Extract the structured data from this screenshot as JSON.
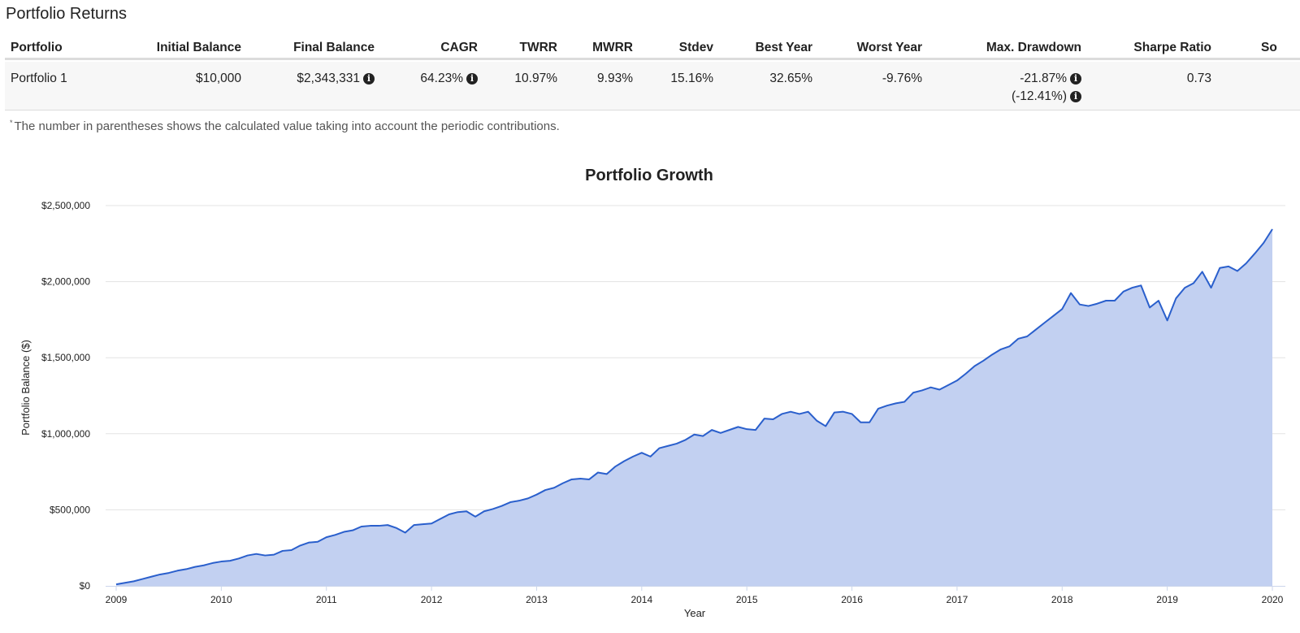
{
  "section_title": "Portfolio Returns",
  "table": {
    "headers": [
      "Portfolio",
      "Initial Balance",
      "Final Balance",
      "CAGR",
      "TWRR",
      "MWRR",
      "Stdev",
      "Best Year",
      "Worst Year",
      "Max. Drawdown",
      "Sharpe Ratio",
      "So"
    ],
    "row": {
      "portfolio": "Portfolio 1",
      "initial_balance": "$10,000",
      "final_balance": "$2,343,331",
      "cagr": "64.23%",
      "twrr": "10.97%",
      "mwrr": "9.93%",
      "stdev": "15.16%",
      "best_year": "32.65%",
      "worst_year": "-9.76%",
      "max_drawdown": "-21.87%",
      "max_drawdown_contrib": "(-12.41%)",
      "sharpe_ratio": "0.73"
    }
  },
  "footnote": {
    "marker": "*",
    "text": "The number in parentheses shows the calculated value taking into account the periodic contributions."
  },
  "chart_data": {
    "type": "area",
    "title": "Portfolio Growth",
    "xlabel": "Year",
    "ylabel": "Portfolio Balance ($)",
    "ylim": [
      0,
      2500000
    ],
    "xlim": [
      2009,
      2020
    ],
    "y_ticks": [
      "$0",
      "$500,000",
      "$1,000,000",
      "$1,500,000",
      "$2,000,000",
      "$2,500,000"
    ],
    "x_ticks": [
      "2009",
      "2010",
      "2011",
      "2012",
      "2013",
      "2014",
      "2015",
      "2016",
      "2017",
      "2018",
      "2019",
      "2020"
    ],
    "grid": true,
    "legend": "none",
    "colors": {
      "line": "#2a5fcc",
      "fill": "#c2d0f1",
      "grid": "#e3e3e3"
    },
    "series": [
      {
        "x": [
          2009.0,
          2009.083,
          2009.167,
          2009.25,
          2009.333,
          2009.417,
          2009.5,
          2009.583,
          2009.667,
          2009.75,
          2009.833,
          2009.917,
          2010.0,
          2010.083,
          2010.167,
          2010.25,
          2010.333,
          2010.417,
          2010.5,
          2010.583,
          2010.667,
          2010.75,
          2010.833,
          2010.917,
          2011.0,
          2011.083,
          2011.167,
          2011.25,
          2011.333,
          2011.417,
          2011.5,
          2011.583,
          2011.667,
          2011.75,
          2011.833,
          2011.917,
          2012.0,
          2012.083,
          2012.167,
          2012.25,
          2012.333,
          2012.417,
          2012.5,
          2012.583,
          2012.667,
          2012.75,
          2012.833,
          2012.917,
          2013.0,
          2013.083,
          2013.167,
          2013.25,
          2013.333,
          2013.417,
          2013.5,
          2013.583,
          2013.667,
          2013.75,
          2013.833,
          2013.917,
          2014.0,
          2014.083,
          2014.167,
          2014.25,
          2014.333,
          2014.417,
          2014.5,
          2014.583,
          2014.667,
          2014.75,
          2014.833,
          2014.917,
          2015.0,
          2015.083,
          2015.167,
          2015.25,
          2015.333,
          2015.417,
          2015.5,
          2015.583,
          2015.667,
          2015.75,
          2015.833,
          2015.917,
          2016.0,
          2016.083,
          2016.167,
          2016.25,
          2016.333,
          2016.417,
          2016.5,
          2016.583,
          2016.667,
          2016.75,
          2016.833,
          2016.917,
          2017.0,
          2017.083,
          2017.167,
          2017.25,
          2017.333,
          2017.417,
          2017.5,
          2017.583,
          2017.667,
          2017.75,
          2017.833,
          2017.917,
          2018.0,
          2018.083,
          2018.167,
          2018.25,
          2018.333,
          2018.417,
          2018.5,
          2018.583,
          2018.667,
          2018.75,
          2018.833,
          2018.917,
          2019.0,
          2019.083,
          2019.167,
          2019.25,
          2019.333,
          2019.417,
          2019.5,
          2019.583,
          2019.667,
          2019.75,
          2019.833,
          2019.917,
          2020.0
        ],
        "values": [
          10000,
          20000,
          30000,
          45000,
          60000,
          75000,
          85000,
          100000,
          110000,
          125000,
          135000,
          150000,
          160000,
          165000,
          180000,
          200000,
          210000,
          200000,
          205000,
          230000,
          235000,
          265000,
          285000,
          290000,
          320000,
          335000,
          355000,
          365000,
          390000,
          395000,
          395000,
          400000,
          380000,
          350000,
          400000,
          405000,
          410000,
          440000,
          470000,
          485000,
          490000,
          455000,
          490000,
          505000,
          525000,
          550000,
          560000,
          575000,
          600000,
          630000,
          645000,
          675000,
          700000,
          705000,
          700000,
          745000,
          735000,
          785000,
          820000,
          850000,
          875000,
          850000,
          905000,
          920000,
          935000,
          960000,
          995000,
          985000,
          1025000,
          1005000,
          1025000,
          1045000,
          1030000,
          1025000,
          1100000,
          1095000,
          1130000,
          1145000,
          1130000,
          1145000,
          1085000,
          1050000,
          1140000,
          1145000,
          1130000,
          1075000,
          1075000,
          1165000,
          1185000,
          1200000,
          1210000,
          1270000,
          1285000,
          1305000,
          1290000,
          1320000,
          1350000,
          1395000,
          1445000,
          1480000,
          1520000,
          1555000,
          1575000,
          1625000,
          1640000,
          1685000,
          1730000,
          1775000,
          1820000,
          1925000,
          1850000,
          1840000,
          1855000,
          1875000,
          1875000,
          1935000,
          1960000,
          1975000,
          1830000,
          1875000,
          1745000,
          1890000,
          1960000,
          1990000,
          2065000,
          1960000,
          2090000,
          2100000,
          2070000,
          2120000,
          2185000,
          2255000,
          2345000
        ]
      }
    ]
  }
}
